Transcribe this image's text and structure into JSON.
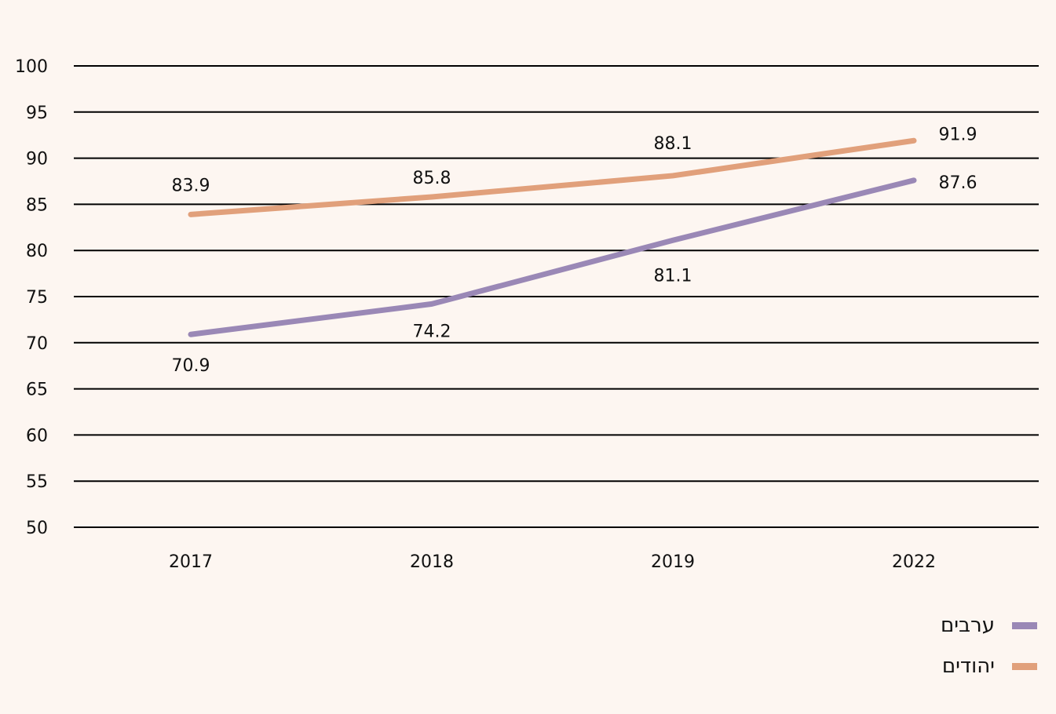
{
  "chart_data": {
    "type": "line",
    "categories": [
      "2017",
      "2018",
      "2019",
      "2022"
    ],
    "ylim": [
      50,
      100
    ],
    "yticks": [
      100,
      95,
      90,
      85,
      80,
      75,
      70,
      65,
      60,
      55,
      50
    ],
    "grid": true,
    "legend_position": "bottom-right",
    "series": [
      {
        "name": "ערבים",
        "values": [
          70.9,
          74.2,
          81.1,
          87.6
        ],
        "labels": [
          "70.9",
          "74.2",
          "81.1",
          "87.6"
        ],
        "color": "#9a88b6"
      },
      {
        "name": "יהודים",
        "values": [
          83.9,
          85.8,
          88.1,
          91.9
        ],
        "labels": [
          "83.9",
          "85.8",
          "88.1",
          "91.9"
        ],
        "color": "#e1a07b"
      }
    ]
  }
}
